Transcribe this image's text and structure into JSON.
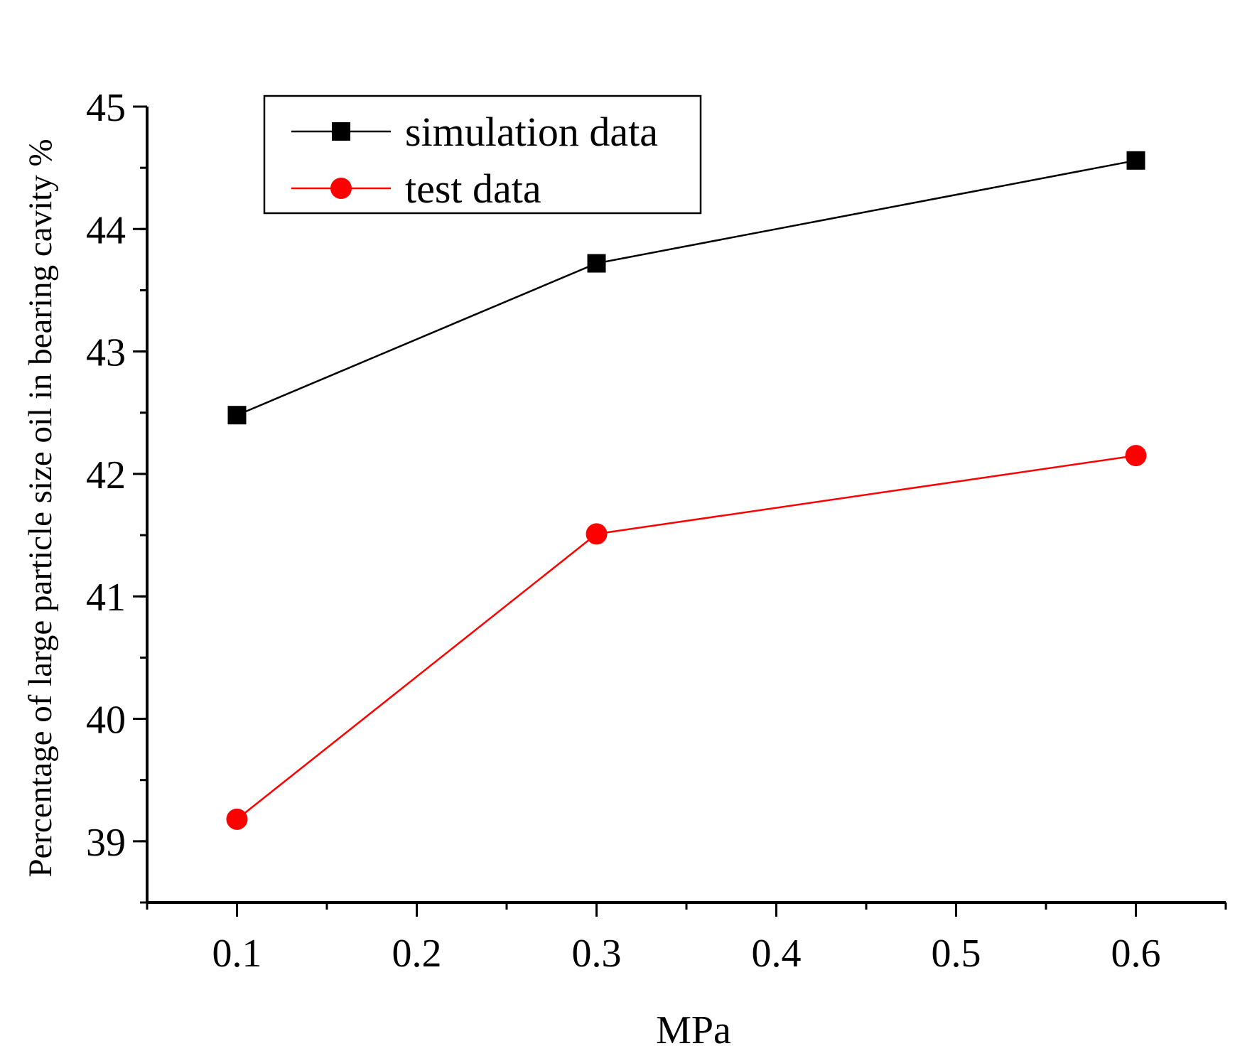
{
  "chart_data": {
    "type": "line",
    "title": "",
    "xlabel": "MPa",
    "ylabel": "Percentage of large particle size oil in bearing cavity %",
    "xlim": [
      0.05,
      0.65
    ],
    "ylim": [
      38.5,
      45
    ],
    "x_ticks": [
      0.1,
      0.2,
      0.3,
      0.4,
      0.5,
      0.6
    ],
    "x_tick_labels": [
      "0.1",
      "0.2",
      "0.3",
      "0.4",
      "0.5",
      "0.6"
    ],
    "y_ticks": [
      39,
      40,
      41,
      42,
      43,
      44,
      45
    ],
    "y_tick_labels": [
      "39",
      "40",
      "41",
      "42",
      "43",
      "44",
      "45"
    ],
    "grid": false,
    "legend_position": "top-left",
    "series": [
      {
        "name": "simulation data",
        "color": "#000000",
        "marker": "square",
        "x": [
          0.1,
          0.3,
          0.6
        ],
        "values": [
          42.48,
          43.72,
          44.56
        ]
      },
      {
        "name": "test data",
        "color": "#ff0000",
        "marker": "circle",
        "x": [
          0.1,
          0.3,
          0.6
        ],
        "values": [
          39.18,
          41.51,
          42.15
        ]
      }
    ]
  }
}
